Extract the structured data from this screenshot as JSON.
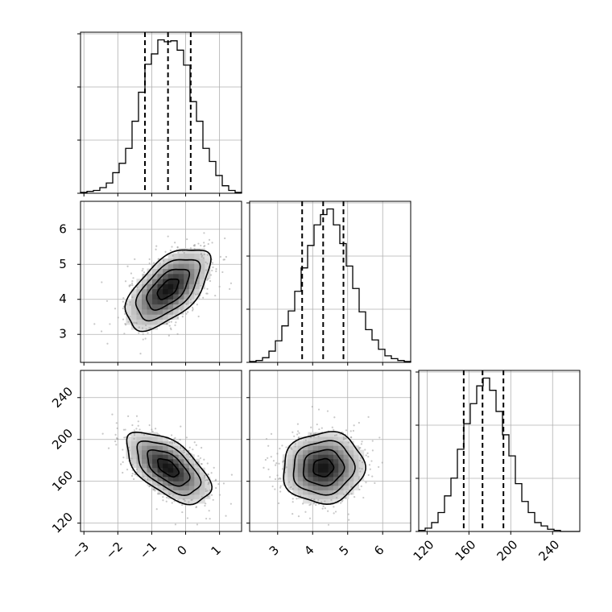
{
  "chart_data": {
    "type": "corner",
    "grid": true,
    "parameters": [
      {
        "key": "p0",
        "range": [
          -3.1,
          1.65
        ],
        "ticks": [
          -3,
          -2,
          -1,
          0,
          1
        ],
        "tick_labels": [
          "−3",
          "−2",
          "−1",
          "0",
          "1"
        ],
        "quantiles": [
          -1.2,
          -0.52,
          0.15
        ],
        "histogram": {
          "bin_edges": [
            -3.1,
            -2.91,
            -2.72,
            -2.53,
            -2.34,
            -2.15,
            -1.96,
            -1.77,
            -1.58,
            -1.39,
            -1.2,
            -1.01,
            -0.82,
            -0.63,
            -0.44,
            -0.25,
            -0.06,
            0.13,
            0.32,
            0.51,
            0.7,
            0.89,
            1.08,
            1.27,
            1.46,
            1.65
          ],
          "counts": [
            1,
            2,
            3,
            6,
            11,
            22,
            32,
            48,
            77,
            108,
            138,
            149,
            164,
            162,
            163,
            153,
            137,
            98,
            77,
            48,
            34,
            19,
            8,
            3,
            1
          ]
        }
      },
      {
        "key": "p1",
        "range": [
          2.2,
          6.8
        ],
        "ticks": [
          3,
          4,
          5,
          6
        ],
        "tick_labels": [
          "3",
          "4",
          "5",
          "6"
        ],
        "quantiles": [
          3.7,
          4.3,
          4.88
        ],
        "histogram": {
          "bin_edges": [
            2.2,
            2.384,
            2.568,
            2.752,
            2.936,
            3.12,
            3.304,
            3.488,
            3.672,
            3.856,
            4.04,
            4.224,
            4.408,
            4.592,
            4.776,
            4.96,
            5.144,
            5.328,
            5.512,
            5.696,
            5.88,
            6.064,
            6.248,
            6.432,
            6.616,
            6.8
          ],
          "counts": [
            1,
            2,
            5,
            12,
            23,
            39,
            55,
            76,
            101,
            125,
            147,
            158,
            164,
            147,
            127,
            103,
            79,
            54,
            35,
            24,
            14,
            7,
            4,
            2,
            1
          ]
        }
      },
      {
        "key": "p2",
        "range": [
          112,
          266
        ],
        "ticks": [
          120,
          160,
          200,
          240
        ],
        "tick_labels": [
          "120",
          "160",
          "200",
          "240"
        ],
        "quantiles": [
          155,
          173,
          193
        ],
        "histogram": {
          "bin_edges": [
            112,
            118.16,
            124.32,
            130.48,
            136.64,
            142.8,
            148.96,
            155.12,
            161.28,
            167.44,
            173.6,
            179.76,
            185.92,
            192.08,
            198.24,
            204.4,
            210.56,
            216.72,
            222.88,
            229.04,
            235.2,
            241.36,
            247.52,
            253.68,
            259.84,
            266
          ],
          "counts": [
            1,
            3,
            8,
            17,
            32,
            48,
            74,
            97,
            115,
            131,
            138,
            127,
            108,
            87,
            68,
            43,
            27,
            17,
            8,
            5,
            2,
            1,
            0,
            0,
            0
          ]
        }
      }
    ],
    "pairs": [
      {
        "x": "p0",
        "y": "p1",
        "mean": [
          -0.52,
          4.3
        ],
        "sd": [
          0.62,
          0.58
        ],
        "correlation": 0.58
      },
      {
        "x": "p0",
        "y": "p2",
        "mean": [
          -0.52,
          173
        ],
        "sd": [
          0.62,
          17
        ],
        "correlation": -0.58
      },
      {
        "x": "p1",
        "y": "p2",
        "mean": [
          4.3,
          173
        ],
        "sd": [
          0.58,
          17
        ],
        "correlation": 0.05
      }
    ],
    "contour_levels_sigma": [
      0.5,
      1.0,
      1.5,
      2.0
    ]
  }
}
